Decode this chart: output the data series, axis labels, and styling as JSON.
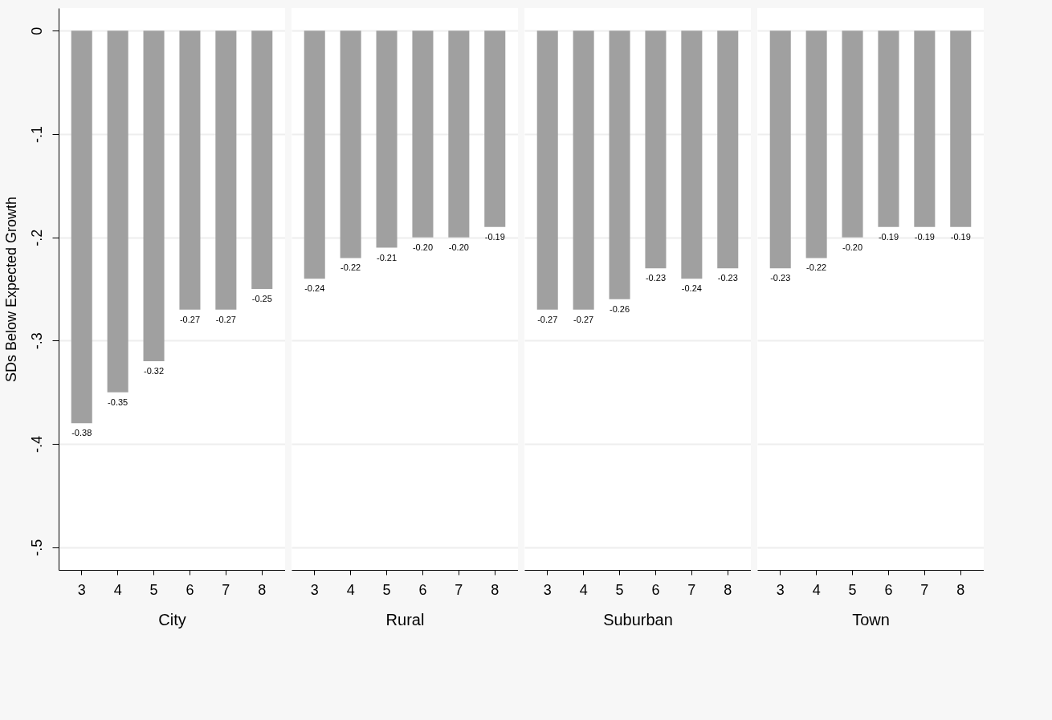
{
  "chart_data": [
    {
      "type": "bar",
      "categories": [
        "3",
        "4",
        "5",
        "6",
        "7",
        "8"
      ],
      "values": [
        -0.38,
        -0.35,
        -0.32,
        -0.27,
        -0.27,
        -0.25
      ],
      "value_labels": [
        "-0.38",
        "-0.35",
        "-0.32",
        "-0.27",
        "-0.27",
        "-0.25"
      ],
      "color": "#a0a0a0",
      "xlabel": "City",
      "ylabel": "SDs Below Expected Growth",
      "ylim": [
        -0.522,
        0.022
      ],
      "yticks": [
        0,
        {
          "value": -0.1,
          "label": "-.1"
        },
        {
          "value": -0.2,
          "label": "-.2"
        },
        {
          "value": -0.3,
          "label": "-.3"
        },
        {
          "value": -0.4,
          "label": "-.4"
        },
        {
          "value": -0.5,
          "label": "-.5"
        }
      ],
      "grid": "y"
    },
    {
      "type": "bar",
      "categories": [
        "3",
        "4",
        "5",
        "6",
        "7",
        "8"
      ],
      "values": [
        -0.24,
        -0.22,
        -0.21,
        -0.2,
        -0.2,
        -0.19
      ],
      "value_labels": [
        "-0.24",
        "-0.22",
        "-0.21",
        "-0.20",
        "-0.20",
        "-0.19"
      ],
      "color": "#a0a0a0",
      "xlabel": "Rural",
      "ylim": [
        -0.522,
        0.022
      ],
      "yticks": [
        0,
        -0.1,
        -0.2,
        -0.3,
        -0.4,
        -0.5
      ],
      "grid": "y",
      "tick_labels": "x"
    },
    {
      "type": "bar",
      "categories": [
        "3",
        "4",
        "5",
        "6",
        "7",
        "8"
      ],
      "values": [
        -0.27,
        -0.27,
        -0.26,
        -0.23,
        -0.24,
        -0.23
      ],
      "value_labels": [
        "-0.27",
        "-0.27",
        "-0.26",
        "-0.23",
        "-0.24",
        "-0.23"
      ],
      "color": "#a0a0a0",
      "xlabel": "Suburban",
      "ylim": [
        -0.522,
        0.022
      ],
      "yticks": [
        0,
        -0.1,
        -0.2,
        -0.3,
        -0.4,
        -0.5
      ],
      "grid": "y",
      "tick_labels": "x"
    },
    {
      "type": "bar",
      "categories": [
        "3",
        "4",
        "5",
        "6",
        "7",
        "8"
      ],
      "values": [
        -0.23,
        -0.22,
        -0.2,
        -0.19,
        -0.19,
        -0.19
      ],
      "value_labels": [
        "-0.23",
        "-0.22",
        "-0.20",
        "-0.19",
        "-0.19",
        "-0.19"
      ],
      "color": "#a0a0a0",
      "xlabel": "Town",
      "ylim": [
        -0.522,
        0.022
      ],
      "yticks": [
        0,
        -0.1,
        -0.2,
        -0.3,
        -0.4,
        -0.5
      ],
      "grid": "y",
      "tick_labels": "x"
    }
  ]
}
